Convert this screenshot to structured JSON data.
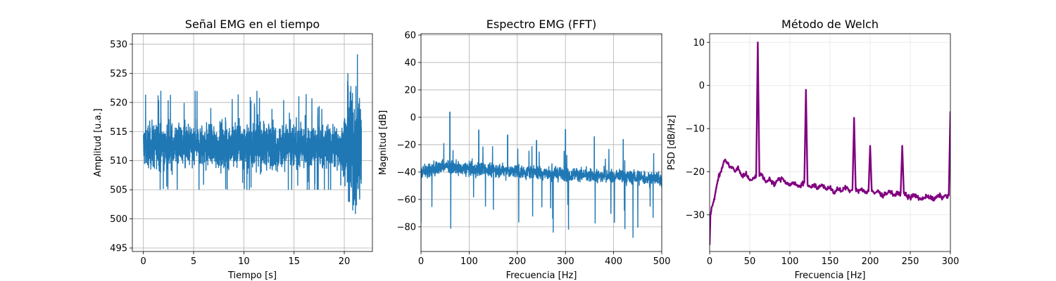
{
  "chart_data": [
    {
      "type": "line",
      "title": "Señal EMG en el tiempo",
      "xlabel": "Tiempo [s]",
      "ylabel": "Amplitud [u.a.]",
      "xlim": [
        -1.1,
        22.8
      ],
      "ylim": [
        494.4,
        531.8
      ],
      "xticks": [
        0,
        5,
        10,
        15,
        20
      ],
      "yticks": [
        495,
        500,
        505,
        510,
        515,
        520,
        525,
        530
      ],
      "grid": "major",
      "color": "#1f77b4",
      "signal": {
        "t_start": 0,
        "t_end": 21.7,
        "burst_start": 19.9,
        "baseline_center": 512.5,
        "baseline_min": 505,
        "baseline_max": 522,
        "burst_min": 496,
        "burst_max": 530
      }
    },
    {
      "type": "line",
      "title": "Espectro EMG (FFT)",
      "xlabel": "Frecuencia [Hz]",
      "ylabel": "Magnitud [dB]",
      "xlim": [
        0,
        500
      ],
      "ylim": [
        -98,
        61
      ],
      "xticks": [
        0,
        100,
        200,
        300,
        400,
        500
      ],
      "yticks": [
        -80,
        -60,
        -40,
        -20,
        0,
        20,
        40,
        60
      ],
      "grid": "major",
      "color": "#1f77b4",
      "peaks": [
        {
          "x": 60,
          "y": 4
        },
        {
          "x": 120,
          "y": -9
        },
        {
          "x": 180,
          "y": -13
        },
        {
          "x": 240,
          "y": -17
        },
        {
          "x": 300,
          "y": -9
        },
        {
          "x": 360,
          "y": -14
        },
        {
          "x": 420,
          "y": -16
        }
      ]
    },
    {
      "type": "line",
      "title": "Método de Welch",
      "xlabel": "Frecuencia [Hz]",
      "ylabel": "PSD [dB/Hz]",
      "xlim": [
        0,
        300
      ],
      "ylim": [
        -38.5,
        12
      ],
      "xticks": [
        0,
        50,
        100,
        150,
        200,
        250,
        300
      ],
      "yticks": [
        -30,
        -20,
        -10,
        0,
        10
      ],
      "grid": "light",
      "color": "#800080",
      "x": [
        0,
        1,
        2,
        5,
        8,
        10,
        14,
        18,
        20,
        24,
        28,
        32,
        35,
        40,
        45,
        50,
        55,
        58,
        60,
        62,
        65,
        70,
        75,
        80,
        85,
        90,
        95,
        100,
        105,
        110,
        115,
        118,
        120,
        122,
        125,
        130,
        135,
        140,
        145,
        150,
        155,
        160,
        165,
        170,
        175,
        178,
        180,
        182,
        185,
        190,
        195,
        198,
        200,
        202,
        205,
        210,
        215,
        220,
        225,
        230,
        235,
        238,
        240,
        242,
        245,
        250,
        255,
        260,
        265,
        270,
        275,
        280,
        285,
        290,
        295,
        298,
        300
      ],
      "y": [
        -37,
        -30,
        -29,
        -27,
        -24,
        -22,
        -20,
        -17.5,
        -17.5,
        -18.5,
        -19,
        -20,
        -19,
        -21,
        -20.5,
        -22,
        -21.5,
        -21,
        10,
        -21,
        -20.5,
        -22.5,
        -21.5,
        -23,
        -22,
        -21.5,
        -22.5,
        -23,
        -22.5,
        -23.5,
        -23,
        -22.5,
        -1,
        -23,
        -23.5,
        -23,
        -24,
        -23,
        -24,
        -23.5,
        -25,
        -24,
        -24.5,
        -23.5,
        -24.5,
        -24,
        -7.5,
        -24,
        -24.5,
        -24,
        -25,
        -24.5,
        -14,
        -24.5,
        -25,
        -24.5,
        -25.5,
        -25,
        -24.5,
        -25.5,
        -25,
        -25,
        -14,
        -25,
        -25.5,
        -26,
        -25.5,
        -26,
        -26.5,
        -25.5,
        -26,
        -26.5,
        -25.5,
        -26,
        -25.5,
        -25.5,
        -6
      ]
    }
  ]
}
